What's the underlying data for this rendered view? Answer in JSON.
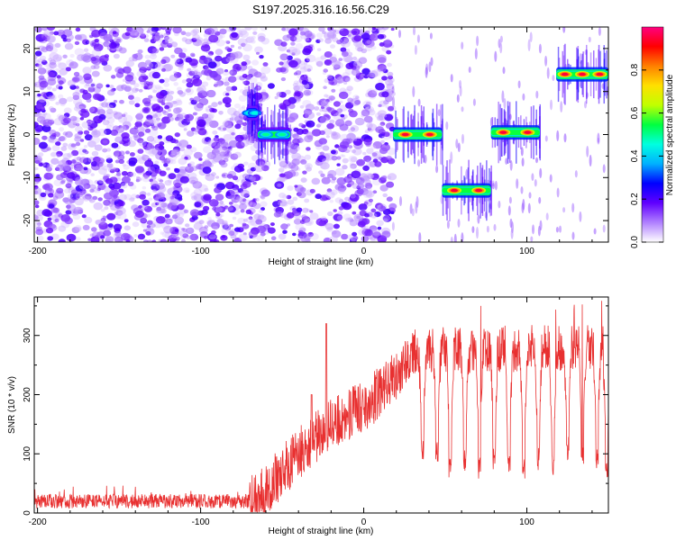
{
  "chart_data": [
    {
      "type": "heatmap",
      "title": "S197.2025.316.16.56.C29",
      "xlabel": "Height of straight line (km)",
      "ylabel": "Frequency (Hz)",
      "xlim": [
        -202,
        150
      ],
      "ylim": [
        -25,
        25
      ],
      "xticks": [
        -200,
        -100,
        0,
        100
      ],
      "yticks": [
        -20,
        -10,
        0,
        10,
        20
      ],
      "noise_region": {
        "x_range": [
          -202,
          18
        ],
        "y_range": [
          -25,
          25
        ],
        "amplitude_range": [
          0.0,
          0.35
        ]
      },
      "gap_columns_x": [
        [
          -60,
          -52
        ],
        [
          -32,
          -28
        ]
      ],
      "signal_tracks": [
        {
          "x_start": -72,
          "x_end": -65,
          "freq": 5,
          "peak_amplitude": 0.45
        },
        {
          "x_start": -65,
          "x_end": -45,
          "freq": 0,
          "peak_amplitude": 0.5
        },
        {
          "x_start": 18,
          "x_end": 48,
          "freq": 0,
          "peak_amplitude": 0.95
        },
        {
          "x_start": 48,
          "x_end": 78,
          "freq": -13,
          "peak_amplitude": 0.95
        },
        {
          "x_start": 78,
          "x_end": 108,
          "freq": 0.5,
          "peak_amplitude": 0.95
        },
        {
          "x_start": 118,
          "x_end": 150,
          "freq": 14,
          "peak_amplitude": 0.95
        }
      ],
      "colorbar": {
        "label": "Normalized spectral amplitude",
        "range": [
          0.0,
          1.0
        ],
        "ticks": [
          "0.0",
          "0.2",
          "0.4",
          "0.6",
          "0.8"
        ],
        "colors": [
          "#ffffff",
          "#b080ff",
          "#6000ff",
          "#0000ff",
          "#00b0ff",
          "#00ffe0",
          "#00ff40",
          "#c0ff00",
          "#ffe000",
          "#ff8000",
          "#ff0000",
          "#ff0080"
        ]
      }
    },
    {
      "type": "line",
      "xlabel": "Height of straight line (km)",
      "ylabel": "SNR (10 * v/v)",
      "xlim": [
        -202,
        150
      ],
      "ylim": [
        0,
        365
      ],
      "xticks": [
        -200,
        -100,
        0,
        100
      ],
      "yticks": [
        0,
        100,
        200,
        300
      ],
      "color": "#e83030",
      "trend": {
        "x": [
          -202,
          -70,
          -60,
          -40,
          -20,
          0,
          20,
          30,
          150
        ],
        "y": [
          20,
          20,
          40,
          100,
          150,
          180,
          230,
          275,
          280
        ]
      },
      "spike_peaks": [
        {
          "x": -23,
          "y": 320
        },
        {
          "x": -32,
          "y": 200
        }
      ],
      "dips": [
        {
          "x": 36,
          "y": 110
        },
        {
          "x": 45,
          "y": 100
        },
        {
          "x": 53,
          "y": 80
        },
        {
          "x": 62,
          "y": 90
        },
        {
          "x": 71,
          "y": 75
        },
        {
          "x": 80,
          "y": 90
        },
        {
          "x": 89,
          "y": 80
        },
        {
          "x": 98,
          "y": 75
        },
        {
          "x": 107,
          "y": 90
        },
        {
          "x": 116,
          "y": 80
        },
        {
          "x": 125,
          "y": 110
        },
        {
          "x": 134,
          "y": 100
        },
        {
          "x": 143,
          "y": 90
        },
        {
          "x": 149,
          "y": 70
        }
      ]
    }
  ]
}
